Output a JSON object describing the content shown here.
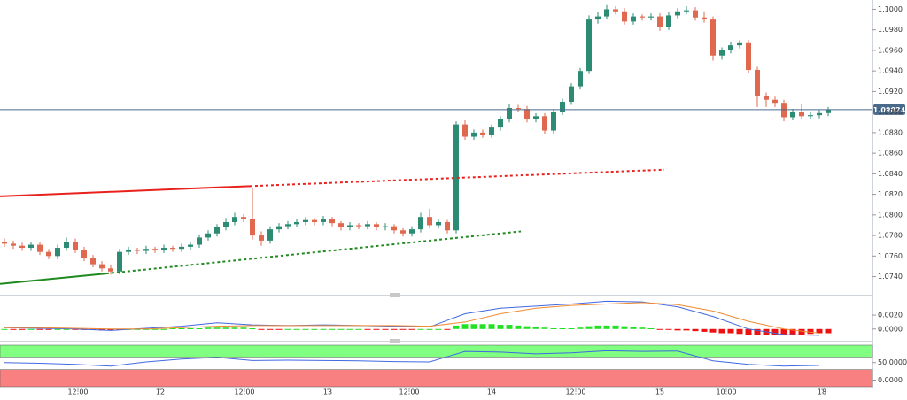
{
  "chart_data": [
    {
      "type": "candlestick",
      "up_color": "#2e8b73",
      "down_color": "#e0684f",
      "ylim": [
        1.0725,
        1.1009
      ],
      "yticks": [
        {
          "value": 1.1,
          "label": "1.1000"
        },
        {
          "value": 1.098,
          "label": "1.0980"
        },
        {
          "value": 1.096,
          "label": "1.0960"
        },
        {
          "value": 1.094,
          "label": "1.0940"
        },
        {
          "value": 1.092,
          "label": "1.0920"
        },
        {
          "value": 1.09,
          "label": "1.0900"
        },
        {
          "value": 1.088,
          "label": "1.0880"
        },
        {
          "value": 1.086,
          "label": "1.0860"
        },
        {
          "value": 1.084,
          "label": "1.0840"
        },
        {
          "value": 1.082,
          "label": "1.0820"
        },
        {
          "value": 1.08,
          "label": "1.0800"
        },
        {
          "value": 1.078,
          "label": "1.0780"
        },
        {
          "value": 1.076,
          "label": "1.0760"
        },
        {
          "value": 1.074,
          "label": "1.0740"
        }
      ],
      "xticks": [
        {
          "value": 8.3,
          "label": "12:00"
        },
        {
          "value": 17.6,
          "label": "12"
        },
        {
          "value": 27.1,
          "label": "12:00"
        },
        {
          "value": 36.5,
          "label": "13"
        },
        {
          "value": 45.7,
          "label": "12:00"
        },
        {
          "value": 55,
          "label": "14"
        },
        {
          "value": 64.5,
          "label": "12:00"
        },
        {
          "value": 74,
          "label": "15"
        },
        {
          "value": 81.5,
          "label": "10:00"
        },
        {
          "value": 92.3,
          "label": "18"
        }
      ],
      "current_price": 1.09024,
      "current_price_color": "#4a6a8c",
      "trendlines": [
        {
          "color": "#e8211d",
          "dashed": false,
          "points": [
            [
              -0.5,
              1.0818
            ],
            [
              27.7,
              1.0828
            ]
          ]
        },
        {
          "color": "#e8211d",
          "dashed": true,
          "points": [
            [
              27.7,
              1.0828
            ],
            [
              74.5,
              1.0844
            ]
          ]
        },
        {
          "color": "#1f8a1f",
          "dashed": false,
          "points": [
            [
              -0.5,
              1.0733
            ],
            [
              11.5,
              1.0743
            ]
          ]
        },
        {
          "color": "#1f8a1f",
          "dashed": true,
          "points": [
            [
              11.5,
              1.0743
            ],
            [
              58.3,
              1.0784
            ]
          ]
        }
      ],
      "ohlc": [
        [
          1.0774,
          1.0777,
          1.0769,
          1.0772
        ],
        [
          1.0772,
          1.0775,
          1.0767,
          1.077
        ],
        [
          1.077,
          1.0773,
          1.0765,
          1.0768
        ],
        [
          1.0768,
          1.0774,
          1.0765,
          1.0771
        ],
        [
          1.0771,
          1.0774,
          1.0761,
          1.0764
        ],
        [
          1.0764,
          1.0767,
          1.0757,
          1.076
        ],
        [
          1.076,
          1.0771,
          1.0757,
          1.0768
        ],
        [
          1.0768,
          1.0778,
          1.0765,
          1.0774
        ],
        [
          1.0774,
          1.0777,
          1.0763,
          1.0766
        ],
        [
          1.0766,
          1.0769,
          1.0755,
          1.0758
        ],
        [
          1.0758,
          1.0761,
          1.0749,
          1.0752
        ],
        [
          1.0752,
          1.0755,
          1.0745,
          1.0748
        ],
        [
          1.0748,
          1.0751,
          1.0742,
          1.0745
        ],
        [
          1.0745,
          1.0767,
          1.0742,
          1.0764
        ],
        [
          1.0764,
          1.0769,
          1.0761,
          1.0766
        ],
        [
          1.0766,
          1.0768,
          1.0762,
          1.0765
        ],
        [
          1.0765,
          1.077,
          1.0762,
          1.0767
        ],
        [
          1.0767,
          1.0769,
          1.0763,
          1.0766
        ],
        [
          1.0766,
          1.0771,
          1.0763,
          1.0768
        ],
        [
          1.0768,
          1.077,
          1.0764,
          1.0767
        ],
        [
          1.0767,
          1.0772,
          1.0764,
          1.0769
        ],
        [
          1.0769,
          1.0774,
          1.0766,
          1.0771
        ],
        [
          1.0771,
          1.0781,
          1.0768,
          1.0778
        ],
        [
          1.0778,
          1.0785,
          1.0775,
          1.0782
        ],
        [
          1.0782,
          1.0791,
          1.0779,
          1.0788
        ],
        [
          1.0788,
          1.0797,
          1.0785,
          1.0793
        ],
        [
          1.0793,
          1.0802,
          1.079,
          1.0798
        ],
        [
          1.0798,
          1.0801,
          1.0793,
          1.0796
        ],
        [
          1.0796,
          1.0826,
          1.0776,
          1.078
        ],
        [
          1.078,
          1.0784,
          1.077,
          1.0775
        ],
        [
          1.0775,
          1.0789,
          1.0772,
          1.0786
        ],
        [
          1.0786,
          1.0792,
          1.0783,
          1.0789
        ],
        [
          1.0789,
          1.0794,
          1.0786,
          1.0791
        ],
        [
          1.0791,
          1.0796,
          1.0788,
          1.0793
        ],
        [
          1.0793,
          1.0798,
          1.079,
          1.0795
        ],
        [
          1.0795,
          1.0797,
          1.079,
          1.0793
        ],
        [
          1.0793,
          1.0799,
          1.079,
          1.0796
        ],
        [
          1.0796,
          1.0798,
          1.0789,
          1.0792
        ],
        [
          1.0792,
          1.0794,
          1.0785,
          1.0788
        ],
        [
          1.0788,
          1.0793,
          1.0785,
          1.079
        ],
        [
          1.079,
          1.0792,
          1.0786,
          1.0789
        ],
        [
          1.0789,
          1.0794,
          1.0786,
          1.0791
        ],
        [
          1.0791,
          1.0793,
          1.0785,
          1.0788
        ],
        [
          1.0788,
          1.0792,
          1.0785,
          1.0789
        ],
        [
          1.0789,
          1.0791,
          1.0782,
          1.0785
        ],
        [
          1.0785,
          1.0787,
          1.0779,
          1.0782
        ],
        [
          1.0782,
          1.0789,
          1.0779,
          1.0786
        ],
        [
          1.0786,
          1.0802,
          1.0783,
          1.0798
        ],
        [
          1.0798,
          1.0806,
          1.0787,
          1.079
        ],
        [
          1.079,
          1.0796,
          1.0787,
          1.0793
        ],
        [
          1.0793,
          1.0795,
          1.0782,
          1.0785
        ],
        [
          1.0785,
          1.0891,
          1.0782,
          1.0888
        ],
        [
          1.0888,
          1.0892,
          1.0873,
          1.0876
        ],
        [
          1.0876,
          1.0883,
          1.0873,
          1.088
        ],
        [
          1.088,
          1.0883,
          1.0875,
          1.0878
        ],
        [
          1.0878,
          1.0888,
          1.0875,
          1.0885
        ],
        [
          1.0885,
          1.0896,
          1.0882,
          1.0893
        ],
        [
          1.0893,
          1.0908,
          1.089,
          1.0904
        ],
        [
          1.0904,
          1.0907,
          1.09,
          1.0903
        ],
        [
          1.0903,
          1.0906,
          1.089,
          1.0893
        ],
        [
          1.0893,
          1.0899,
          1.089,
          1.0896
        ],
        [
          1.0896,
          1.0899,
          1.0879,
          1.0882
        ],
        [
          1.0882,
          1.0903,
          1.0879,
          1.09
        ],
        [
          1.09,
          1.0913,
          1.0897,
          1.091
        ],
        [
          1.091,
          1.0928,
          1.0907,
          1.0925
        ],
        [
          1.0925,
          1.0943,
          1.0922,
          1.094
        ],
        [
          1.094,
          1.0994,
          1.0937,
          1.099
        ],
        [
          1.099,
          1.0997,
          1.0986,
          1.0993
        ],
        [
          1.0993,
          1.1004,
          1.099,
          1.1
        ],
        [
          1.1,
          1.1003,
          1.0995,
          1.0998
        ],
        [
          1.0998,
          1.1001,
          1.0985,
          1.0988
        ],
        [
          1.0988,
          1.0996,
          1.0985,
          1.0993
        ],
        [
          1.0993,
          1.0995,
          1.0989,
          1.0992
        ],
        [
          1.0992,
          1.0996,
          1.0989,
          1.0993
        ],
        [
          1.0993,
          1.0996,
          1.0979,
          1.0983
        ],
        [
          1.0983,
          1.0997,
          1.098,
          1.0994
        ],
        [
          1.0994,
          1.1001,
          1.0991,
          1.0998
        ],
        [
          1.0998,
          1.1003,
          1.0995,
          1.0999
        ],
        [
          1.0999,
          1.1002,
          1.0989,
          1.0992
        ],
        [
          1.0992,
          1.0998,
          1.0987,
          1.099
        ],
        [
          1.099,
          1.0993,
          1.095,
          1.0955
        ],
        [
          1.0955,
          1.0963,
          1.0951,
          1.096
        ],
        [
          1.096,
          1.0968,
          1.0957,
          1.0965
        ],
        [
          1.0965,
          1.097,
          1.0962,
          1.0967
        ],
        [
          1.0967,
          1.097,
          1.0938,
          1.0941
        ],
        [
          1.0941,
          1.0944,
          1.0905,
          1.0916
        ],
        [
          1.0916,
          1.0919,
          1.0905,
          1.0912
        ],
        [
          1.0912,
          1.0915,
          1.0905,
          1.0909
        ],
        [
          1.0909,
          1.0912,
          1.0891,
          1.0895
        ],
        [
          1.0895,
          1.0903,
          1.0892,
          1.09
        ],
        [
          1.09,
          1.0908,
          1.0893,
          1.0896
        ],
        [
          1.0896,
          1.09,
          1.0893,
          1.0897
        ],
        [
          1.0897,
          1.0902,
          1.0894,
          1.0899
        ],
        [
          1.0899,
          1.0905,
          1.0896,
          1.09024
        ]
      ]
    },
    {
      "type": "macd",
      "ylim": [
        -0.0013,
        0.0043
      ],
      "yticks": [
        {
          "value": 0.002,
          "label": "0.0020"
        },
        {
          "value": 0,
          "label": "0.0000"
        }
      ],
      "histogram": {
        "up_color": "#22e022",
        "down_color": "#ee1111",
        "values": [
          0.0,
          -0.0001,
          -0.0001,
          0.0,
          -0.0001,
          -0.0001,
          0.0,
          0.0,
          -0.0001,
          -0.0001,
          -0.0001,
          -0.0002,
          -0.0002,
          -0.0001,
          0.0,
          0.0,
          0.0,
          0.0,
          0.0,
          0.0001,
          0.0001,
          0.0001,
          0.0001,
          0.0002,
          0.0002,
          0.0002,
          0.0002,
          0.0002,
          0.0001,
          -0.0001,
          -0.0001,
          -0.0001,
          0.0,
          0.0,
          0.0,
          0.0,
          0.0,
          0.0,
          0.0,
          0.0,
          0.0,
          -0.0001,
          -0.0001,
          -0.0001,
          -0.0001,
          -0.0001,
          -0.0001,
          0.0,
          0.0,
          0.0,
          -0.0001,
          0.0005,
          0.0007,
          0.0007,
          0.0007,
          0.0007,
          0.0006,
          0.0006,
          0.0005,
          0.0004,
          0.0003,
          0.0002,
          0.0001,
          0.0001,
          0.0001,
          0.0002,
          0.0004,
          0.0005,
          0.0005,
          0.0005,
          0.0004,
          0.0003,
          0.0002,
          0.0001,
          -0.0001,
          -0.0001,
          -0.0002,
          -0.0002,
          -0.0003,
          -0.0004,
          -0.0005,
          -0.0006,
          -0.0006,
          -0.0007,
          -0.0008,
          -0.0009,
          -0.0009,
          -0.0009,
          -0.0009,
          -0.0008,
          -0.0008,
          -0.0007,
          -0.0006,
          -0.0006
        ]
      },
      "x": [
        0,
        4,
        8,
        12,
        16,
        20,
        24,
        28,
        32,
        36,
        40,
        44,
        48,
        52,
        56,
        60,
        64,
        68,
        72,
        76,
        80,
        84,
        88,
        92
      ],
      "lines": [
        {
          "color": "#4169e1",
          "values": [
            0.0002,
            0.0001,
            0.0,
            -0.0002,
            0.0001,
            0.0004,
            0.0009,
            0.0006,
            0.0005,
            0.0006,
            0.0005,
            0.0004,
            0.0003,
            0.0022,
            0.003,
            0.0033,
            0.0036,
            0.004,
            0.0039,
            0.0032,
            0.0018,
            0.0,
            -0.0008,
            -0.0009
          ]
        },
        {
          "color": "#f08a30",
          "values": [
            0.0002,
            0.0002,
            0.0001,
            0.0,
            0.0,
            0.0002,
            0.0004,
            0.0005,
            0.0005,
            0.0005,
            0.0005,
            0.0005,
            0.0004,
            0.001,
            0.0022,
            0.003,
            0.0034,
            0.0036,
            0.0038,
            0.0035,
            0.0026,
            0.0011,
            0.0,
            -0.0006
          ]
        }
      ]
    },
    {
      "type": "rsi",
      "ylim": [
        -19,
        100
      ],
      "yticks": [
        {
          "value": 50,
          "label": "50.0000"
        },
        {
          "value": 0,
          "label": "0.0000"
        }
      ],
      "bands": [
        {
          "range": [
            66,
            100
          ],
          "color": "#80ff80"
        },
        {
          "range": [
            -19,
            30
          ],
          "color": "#f88080"
        }
      ],
      "x": [
        0,
        4,
        8,
        12,
        16,
        20,
        24,
        28,
        32,
        36,
        40,
        44,
        48,
        52,
        56,
        60,
        64,
        68,
        72,
        76,
        80,
        84,
        88,
        92
      ],
      "lines": [
        {
          "color": "#4169e1",
          "values": [
            50,
            48,
            45,
            40,
            52,
            60,
            65,
            56,
            57,
            56,
            55,
            53,
            52,
            82,
            80,
            75,
            78,
            84,
            82,
            83,
            55,
            45,
            40,
            42
          ]
        }
      ]
    }
  ]
}
